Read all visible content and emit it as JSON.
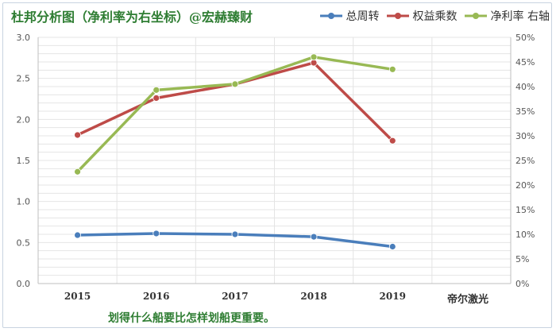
{
  "title": "杜邦分析图（净利率为右坐标）@宏赫臻财",
  "footer_note": "划得什么船要比怎样划船更重要。",
  "corner_label": "帝尔激光",
  "chart_data": {
    "type": "line",
    "title": "杜邦分析图（净利率为右坐标）@宏赫臻财",
    "categories": [
      "2015",
      "2016",
      "2017",
      "2018",
      "2019"
    ],
    "y_left": {
      "min": 0,
      "max": 3.0,
      "step": 0.5,
      "ticks": [
        "0.0",
        "0.5",
        "1.0",
        "1.5",
        "2.0",
        "2.5",
        "3.0"
      ]
    },
    "y_right": {
      "min": 0,
      "max": 0.5,
      "step": 0.05,
      "ticks": [
        "0%",
        "5%",
        "10%",
        "15%",
        "20%",
        "25%",
        "30%",
        "35%",
        "40%",
        "45%",
        "50%"
      ]
    },
    "grid": true,
    "legend_position": "top-right",
    "series": [
      {
        "name": "总周转",
        "axis": "left",
        "color": "#4a7ebb",
        "values": [
          0.59,
          0.61,
          0.6,
          0.57,
          0.45
        ]
      },
      {
        "name": "权益乘数",
        "axis": "left",
        "color": "#be4b48",
        "values": [
          1.81,
          2.26,
          2.43,
          2.69,
          1.74
        ]
      },
      {
        "name": "净利率 右轴",
        "axis": "right",
        "color": "#98b954",
        "values": [
          0.227,
          0.393,
          0.405,
          0.46,
          0.435
        ]
      }
    ]
  }
}
